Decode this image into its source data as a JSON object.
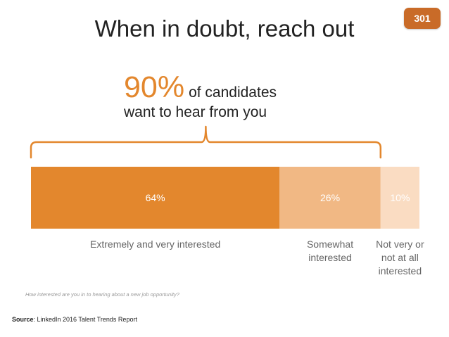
{
  "slide": {
    "title": "When in doubt, reach out",
    "page_number": "301",
    "headline_pct": "90%",
    "headline_rest": "of candidates",
    "headline_line2": "want to hear from you",
    "question": "How interested are you in to hearing about a new job opportunity?",
    "source_label": "Source",
    "source_text": ": LinkedIn 2016 Talent Trends Report"
  },
  "colors": {
    "accent": "#e3872d",
    "badge": "#c96b28",
    "segments": [
      "#e3872d",
      "#f1b884",
      "#fadcc2"
    ]
  },
  "chart_data": {
    "type": "bar",
    "orientation": "horizontal-stacked",
    "total": 100,
    "categories": [
      "Extremely and very interested",
      "Somewhat interested",
      "Not very or not at all interested"
    ],
    "values": [
      64,
      26,
      10
    ],
    "data_labels": [
      "64%",
      "26%",
      "10%"
    ],
    "bracket_label": "90%",
    "bracket_covers_values": [
      64,
      26
    ]
  }
}
